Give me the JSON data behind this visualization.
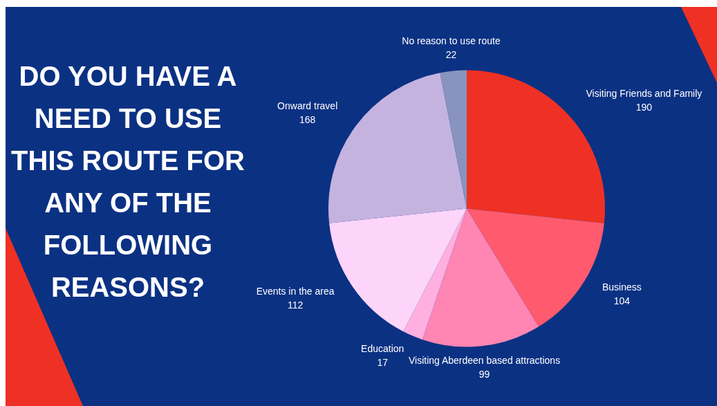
{
  "chart_data": {
    "type": "pie",
    "title": "DO YOU HAVE A NEED TO USE THIS ROUTE FOR ANY OF THE FOLLOWING REASONS?",
    "categories": [
      "Visiting Friends and Family",
      "Business",
      "Visiting Aberdeen based attractions",
      "Education",
      "Events in the area",
      "Onward travel",
      "No reason to use route"
    ],
    "values": [
      190,
      104,
      99,
      17,
      112,
      168,
      22
    ],
    "colors": [
      "#ee3124",
      "#ff5a6e",
      "#ff85b3",
      "#ffb0e0",
      "#fdd5fb",
      "#c4b3df",
      "#8893bf"
    ],
    "data_labels": true,
    "legend": false
  }
}
